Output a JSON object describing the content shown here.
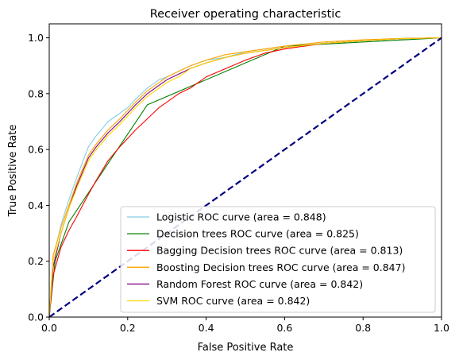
{
  "chart_data": {
    "type": "line",
    "title": "Receiver operating characteristic",
    "xlabel": "False Positive Rate",
    "ylabel": "True Positive Rate",
    "xlim": [
      0.0,
      1.0
    ],
    "ylim": [
      0.0,
      1.05
    ],
    "xticks": [
      {
        "value": 0.0,
        "label": "0.0"
      },
      {
        "value": 0.2,
        "label": "0.2"
      },
      {
        "value": 0.4,
        "label": "0.4"
      },
      {
        "value": 0.6,
        "label": "0.6"
      },
      {
        "value": 0.8,
        "label": "0.8"
      },
      {
        "value": 1.0,
        "label": "1.0"
      }
    ],
    "yticks": [
      {
        "value": 0.0,
        "label": "0.0"
      },
      {
        "value": 0.2,
        "label": "0.2"
      },
      {
        "value": 0.4,
        "label": "0.4"
      },
      {
        "value": 0.6,
        "label": "0.6"
      },
      {
        "value": 0.8,
        "label": "0.8"
      },
      {
        "value": 1.0,
        "label": "1.0"
      }
    ],
    "grid": false,
    "legend_position": "lower-right",
    "reference_line": {
      "x": [
        0.0,
        1.0
      ],
      "y": [
        0.0,
        1.0
      ],
      "color": "#000080",
      "style": "dashed"
    },
    "series": [
      {
        "name": "Logistic ROC curve (area = 0.848)",
        "color": "#87ceeb",
        "x": [
          0.0,
          0.01,
          0.02,
          0.03,
          0.05,
          0.07,
          0.1,
          0.12,
          0.15,
          0.18,
          0.2,
          0.22,
          0.25,
          0.28,
          0.3,
          0.33,
          0.36,
          0.4,
          0.45,
          0.5,
          0.6,
          0.7,
          0.8,
          0.9,
          1.0
        ],
        "y": [
          0.0,
          0.22,
          0.27,
          0.33,
          0.42,
          0.5,
          0.61,
          0.65,
          0.7,
          0.73,
          0.75,
          0.78,
          0.82,
          0.85,
          0.86,
          0.88,
          0.9,
          0.92,
          0.93,
          0.95,
          0.97,
          0.98,
          0.99,
          0.997,
          1.0
        ]
      },
      {
        "name": "Decision trees ROC curve (area = 0.825)",
        "color": "#008000",
        "x": [
          0.0,
          0.015,
          0.05,
          0.25,
          0.6,
          1.0
        ],
        "y": [
          0.0,
          0.2,
          0.34,
          0.76,
          0.97,
          1.0
        ]
      },
      {
        "name": "Bagging Decision trees ROC curve (area = 0.813)",
        "color": "#ff0000",
        "x": [
          0.0,
          0.01,
          0.03,
          0.05,
          0.07,
          0.1,
          0.12,
          0.15,
          0.18,
          0.2,
          0.22,
          0.25,
          0.28,
          0.3,
          0.33,
          0.36,
          0.4,
          0.45,
          0.5,
          0.55,
          0.6,
          0.7,
          0.8,
          0.9,
          1.0
        ],
        "y": [
          0.0,
          0.15,
          0.25,
          0.31,
          0.36,
          0.44,
          0.49,
          0.56,
          0.61,
          0.64,
          0.67,
          0.71,
          0.75,
          0.77,
          0.8,
          0.82,
          0.86,
          0.89,
          0.92,
          0.945,
          0.96,
          0.98,
          0.99,
          0.997,
          1.0
        ]
      },
      {
        "name": "Boosting Decision trees ROC curve (area = 0.847)",
        "color": "#ffa500",
        "x": [
          0.0,
          0.01,
          0.02,
          0.03,
          0.05,
          0.07,
          0.1,
          0.12,
          0.15,
          0.18,
          0.2,
          0.22,
          0.25,
          0.28,
          0.3,
          0.33,
          0.36,
          0.4,
          0.45,
          0.5,
          0.6,
          0.7,
          0.8,
          0.9,
          1.0
        ],
        "y": [
          0.0,
          0.22,
          0.27,
          0.32,
          0.4,
          0.48,
          0.58,
          0.62,
          0.67,
          0.71,
          0.74,
          0.77,
          0.81,
          0.84,
          0.86,
          0.88,
          0.9,
          0.92,
          0.94,
          0.95,
          0.97,
          0.985,
          0.993,
          0.998,
          1.0
        ]
      },
      {
        "name": "Random Forest ROC curve (area = 0.842)",
        "color": "#800080",
        "x": [
          0.0,
          0.01,
          0.02,
          0.03,
          0.05,
          0.07,
          0.1,
          0.12,
          0.15,
          0.18,
          0.2,
          0.22,
          0.25,
          0.28,
          0.3,
          0.33,
          0.36,
          0.4,
          0.45,
          0.5,
          0.6,
          0.7,
          0.8,
          0.9,
          1.0
        ],
        "y": [
          0.0,
          0.18,
          0.24,
          0.3,
          0.39,
          0.47,
          0.57,
          0.61,
          0.66,
          0.7,
          0.73,
          0.76,
          0.8,
          0.83,
          0.85,
          0.87,
          0.89,
          0.91,
          0.93,
          0.945,
          0.965,
          0.98,
          0.99,
          0.997,
          1.0
        ]
      },
      {
        "name": "SVM ROC curve (area = 0.842)",
        "color": "#ffd700",
        "x": [
          0.0,
          0.01,
          0.02,
          0.03,
          0.05,
          0.07,
          0.1,
          0.12,
          0.15,
          0.18,
          0.2,
          0.22,
          0.25,
          0.28,
          0.3,
          0.33,
          0.36,
          0.4,
          0.45,
          0.5,
          0.6,
          0.7,
          0.8,
          0.9,
          1.0
        ],
        "y": [
          0.0,
          0.2,
          0.25,
          0.3,
          0.39,
          0.46,
          0.56,
          0.6,
          0.65,
          0.69,
          0.72,
          0.75,
          0.79,
          0.82,
          0.84,
          0.86,
          0.89,
          0.91,
          0.93,
          0.945,
          0.965,
          0.98,
          0.99,
          0.997,
          1.0
        ]
      }
    ]
  }
}
